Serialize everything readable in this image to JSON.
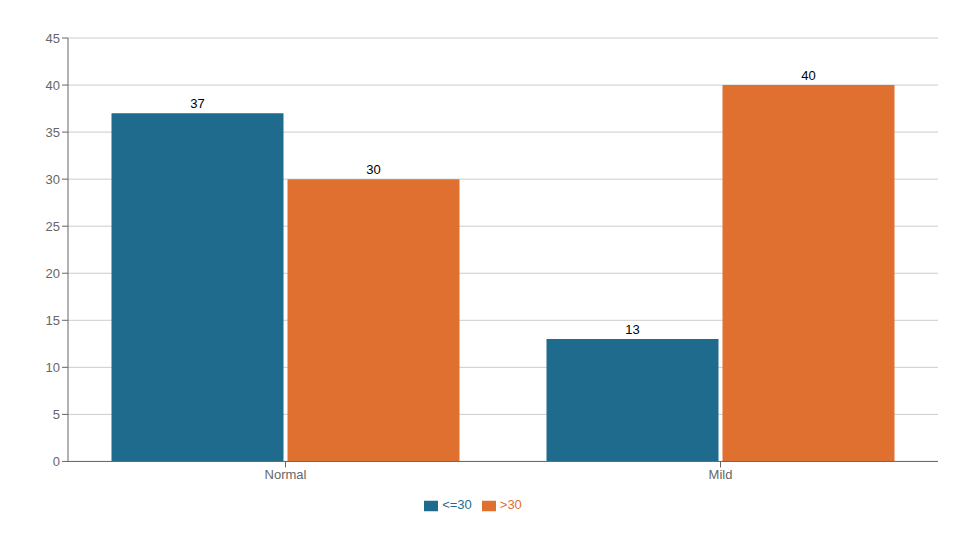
{
  "chart_data": {
    "type": "bar",
    "categories": [
      "Normal",
      "Mild"
    ],
    "series": [
      {
        "name": "<=30",
        "color": "#1f6b8e",
        "values": [
          37,
          13
        ]
      },
      {
        "name": ">30",
        "color": "#e07030",
        "values": [
          30,
          40
        ]
      }
    ],
    "ylim": [
      0,
      45
    ],
    "yticks": [
      0,
      5,
      10,
      15,
      20,
      25,
      30,
      35,
      40,
      45
    ],
    "grid": true,
    "legend": "bottom",
    "data_labels": true
  }
}
